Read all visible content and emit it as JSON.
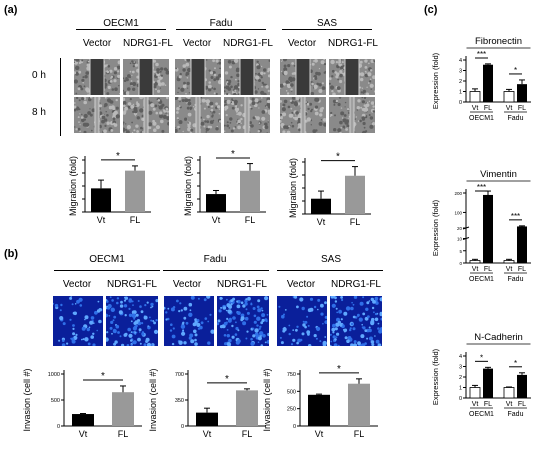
{
  "panel_labels": {
    "a": "(a)",
    "b": "(b)",
    "c": "(c)"
  },
  "cell_lines": [
    "OECM1",
    "Fadu",
    "SAS"
  ],
  "conditions": [
    "Vector",
    "NDRG1-FL"
  ],
  "time_labels": [
    "0 h",
    "8 h"
  ],
  "significance": "*",
  "significance_strong": "***",
  "panel_c_groups": [
    "OECM1",
    "Fadu"
  ],
  "chart_data": [
    {
      "id": "migration-oecm1",
      "type": "bar",
      "categories": [
        "Vt",
        "FL"
      ],
      "values": [
        1.0,
        1.75
      ],
      "errors": [
        0.35,
        0.2
      ],
      "ylabel": "Migration (fold)",
      "colors": [
        "#000000",
        "#999999"
      ]
    },
    {
      "id": "migration-fadu",
      "type": "bar",
      "categories": [
        "Vt",
        "FL"
      ],
      "values": [
        1.0,
        2.3
      ],
      "errors": [
        0.2,
        0.4
      ],
      "ylabel": "Migration (fold)",
      "colors": [
        "#000000",
        "#999999"
      ]
    },
    {
      "id": "migration-sas",
      "type": "bar",
      "categories": [
        "Vt",
        "FL"
      ],
      "values": [
        1.0,
        2.5
      ],
      "errors": [
        0.5,
        0.6
      ],
      "ylabel": "Migration (fold)",
      "colors": [
        "#000000",
        "#999999"
      ]
    },
    {
      "id": "invasion-oecm1",
      "type": "bar",
      "categories": [
        "Vt",
        "FL"
      ],
      "values": [
        230,
        650
      ],
      "errors": [
        10,
        120
      ],
      "ylabel": "Invasion (cell #)",
      "ylim": [
        0,
        1000
      ],
      "yticks": [
        0,
        500,
        1000
      ],
      "colors": [
        "#000000",
        "#999999"
      ]
    },
    {
      "id": "invasion-fadu",
      "type": "bar",
      "categories": [
        "Vt",
        "FL"
      ],
      "values": [
        180,
        480
      ],
      "errors": [
        60,
        20
      ],
      "ylabel": "Invasion (cell #)",
      "ylim": [
        0,
        700
      ],
      "yticks": [
        0,
        350,
        700
      ],
      "colors": [
        "#000000",
        "#999999"
      ]
    },
    {
      "id": "invasion-sas",
      "type": "bar",
      "categories": [
        "Vt",
        "FL"
      ],
      "values": [
        450,
        610
      ],
      "errors": [
        10,
        70
      ],
      "ylabel": "Invasion (cell #)",
      "ylim": [
        0,
        750
      ],
      "yticks": [
        0,
        250,
        500,
        750
      ],
      "colors": [
        "#000000",
        "#999999"
      ]
    },
    {
      "id": "fibronectin",
      "type": "bar",
      "title": "Fibronectin",
      "ylabel": "Expression (fold)",
      "ylim": [
        0,
        4
      ],
      "yticks": [
        0,
        1,
        2,
        3,
        4
      ],
      "categories": [
        "Vt",
        "FL",
        "Vt",
        "FL"
      ],
      "groups": [
        "OECM1",
        "Fadu"
      ],
      "values": [
        1.0,
        3.55,
        1.0,
        1.7
      ],
      "errors": [
        0.25,
        0.08,
        0.2,
        0.4
      ],
      "colors": [
        "#ffffff",
        "#000000",
        "#ffffff",
        "#000000"
      ]
    },
    {
      "id": "vimentin",
      "type": "bar",
      "title": "Vimentin",
      "ylabel": "Expression (fold)",
      "yticks": [
        0,
        5,
        10,
        20,
        100,
        200
      ],
      "categories": [
        "Vt",
        "FL",
        "Vt",
        "FL"
      ],
      "groups": [
        "OECM1",
        "Fadu"
      ],
      "values": [
        1.0,
        190,
        1.0,
        28
      ],
      "errors": [
        0.5,
        20,
        0.5,
        3
      ],
      "colors": [
        "#ffffff",
        "#000000",
        "#ffffff",
        "#000000"
      ]
    },
    {
      "id": "n-cadherin",
      "type": "bar",
      "title": "N-Cadherin",
      "ylabel": "Expression (fold)",
      "ylim": [
        0,
        4
      ],
      "yticks": [
        0,
        1,
        2,
        3,
        4
      ],
      "categories": [
        "Vt",
        "FL",
        "Vt",
        "FL"
      ],
      "groups": [
        "OECM1",
        "Fadu"
      ],
      "values": [
        1.0,
        2.8,
        1.0,
        2.2
      ],
      "errors": [
        0.2,
        0.12,
        0.05,
        0.2
      ],
      "colors": [
        "#ffffff",
        "#000000",
        "#ffffff",
        "#000000"
      ]
    }
  ]
}
